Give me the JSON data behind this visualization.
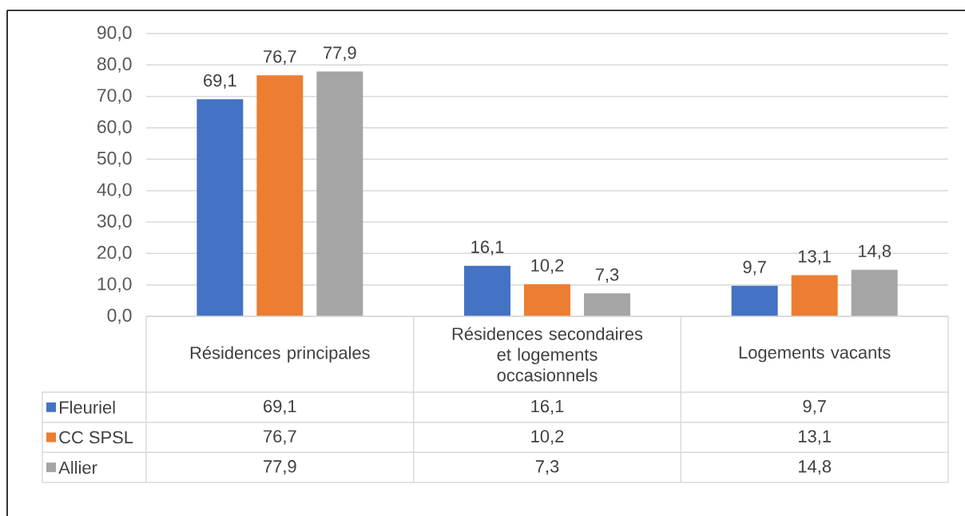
{
  "chart_data": {
    "type": "bar",
    "categories": [
      "Résidences principales",
      "Résidences secondaires et logements occasionnels",
      "Logements vacants"
    ],
    "series": [
      {
        "name": "Fleuriel",
        "color": "#4472c4",
        "values": [
          69.1,
          16.1,
          9.7
        ],
        "value_labels": [
          "69,1",
          "16,1",
          "9,7"
        ]
      },
      {
        "name": "CC SPSL",
        "color": "#ed7d31",
        "values": [
          76.7,
          10.2,
          13.1
        ],
        "value_labels": [
          "76,7",
          "10,2",
          "13,1"
        ]
      },
      {
        "name": "Allier",
        "color": "#a5a5a5",
        "values": [
          77.9,
          7.3,
          14.8
        ],
        "value_labels": [
          "77,9",
          "7,3",
          "14,8"
        ]
      }
    ],
    "ylim": [
      0,
      90
    ],
    "yticks": [
      {
        "value": 0,
        "label": "0,0"
      },
      {
        "value": 10,
        "label": "10,0"
      },
      {
        "value": 20,
        "label": "20,0"
      },
      {
        "value": 30,
        "label": "30,0"
      },
      {
        "value": 40,
        "label": "40,0"
      },
      {
        "value": 50,
        "label": "50,0"
      },
      {
        "value": 60,
        "label": "60,0"
      },
      {
        "value": 70,
        "label": "70,0"
      },
      {
        "value": 80,
        "label": "80,0"
      },
      {
        "value": 90,
        "label": "90,0"
      }
    ],
    "grid": "y",
    "legend": "bottom"
  }
}
